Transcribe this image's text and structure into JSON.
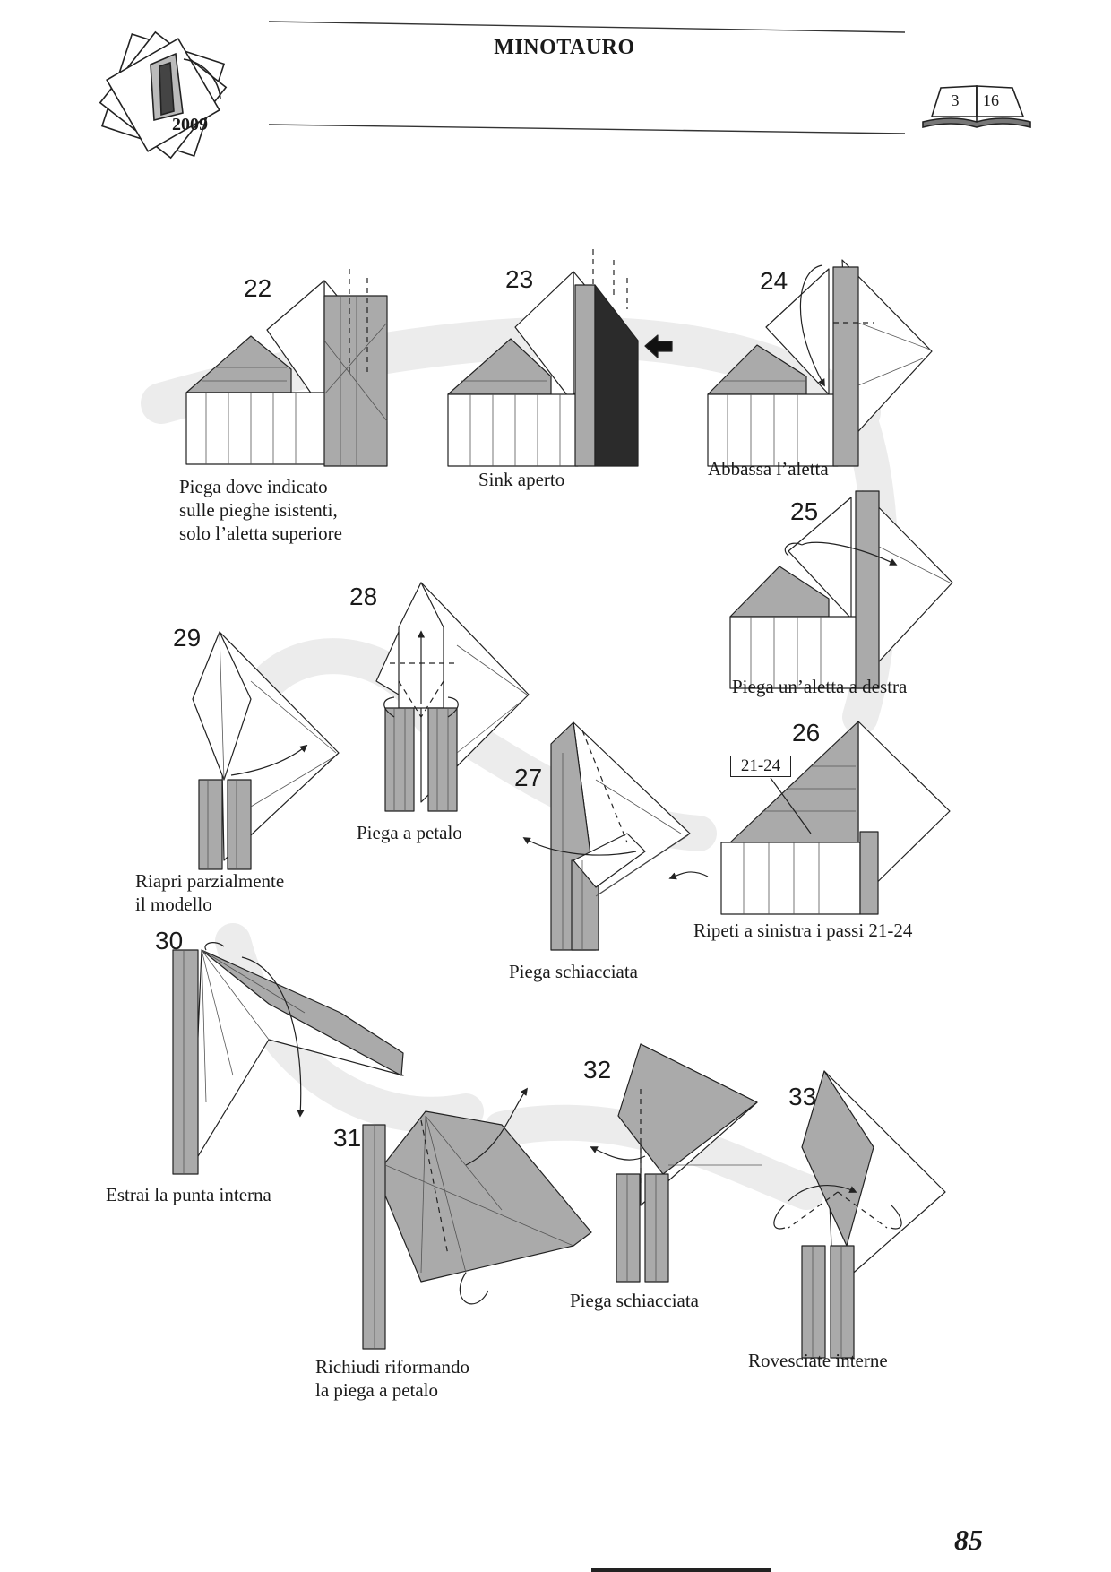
{
  "header": {
    "title": "MINOTAURO",
    "year": "2009",
    "book_page_left": "3",
    "book_page_right": "16"
  },
  "steps": [
    {
      "number": "22",
      "caption": [
        "Piega dove indicato",
        "sulle pieghe isistenti,",
        "solo l’aletta superiore"
      ]
    },
    {
      "number": "23",
      "caption": [
        "Sink aperto"
      ]
    },
    {
      "number": "24",
      "caption": [
        "Abbassa l’aletta"
      ]
    },
    {
      "number": "25",
      "caption": [
        "Piega un’aletta a destra"
      ]
    },
    {
      "number": "26",
      "caption": [
        "Ripeti a sinistra i passi 21-24"
      ],
      "reference": "21-24"
    },
    {
      "number": "27",
      "caption": [
        "Piega schiacciata"
      ]
    },
    {
      "number": "28",
      "caption": [
        "Piega a petalo"
      ]
    },
    {
      "number": "29",
      "caption": [
        "Riapri parzialmente",
        "il modello"
      ]
    },
    {
      "number": "30",
      "caption": [
        "Estrai la punta interna"
      ]
    },
    {
      "number": "31",
      "caption": [
        "Richiudi riformando",
        "la piega a petalo"
      ]
    },
    {
      "number": "32",
      "caption": [
        "Piega schiacciata"
      ]
    },
    {
      "number": "33",
      "caption": [
        "Rovesciate interne"
      ]
    }
  ],
  "footer": {
    "page_number": "85"
  },
  "colors": {
    "paper_gray": "#a9a9a9",
    "dark_fill": "#2b2b2b",
    "flow_band": "#e8e8e8",
    "line": "#222222"
  }
}
